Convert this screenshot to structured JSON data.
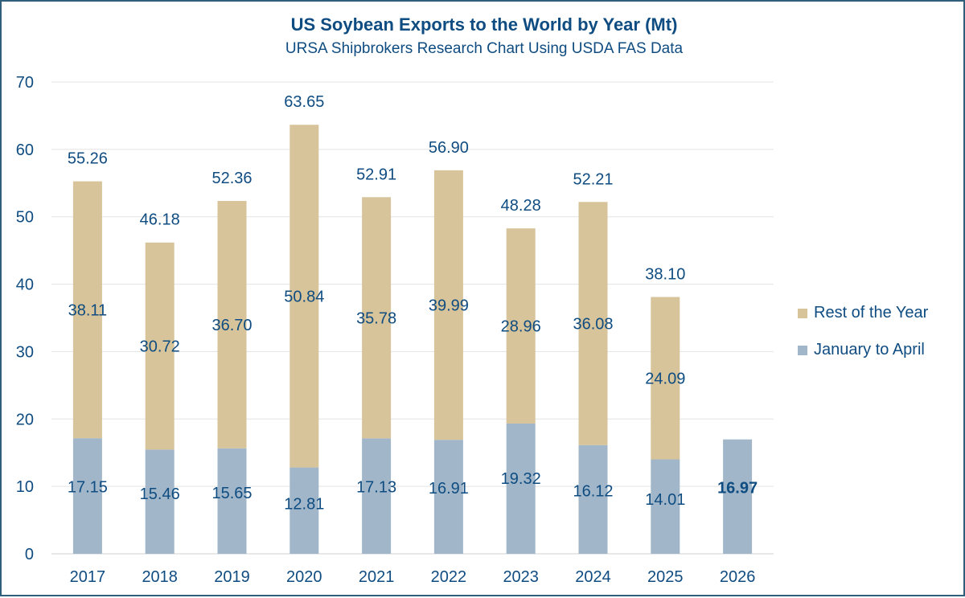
{
  "chart_data": {
    "type": "bar",
    "stacked": true,
    "title": "US Soybean Exports to the World by Year (Mt)",
    "subtitle": "URSA Shipbrokers Research Chart Using USDA FAS Data",
    "categories": [
      "2017",
      "2018",
      "2019",
      "2020",
      "2021",
      "2022",
      "2023",
      "2024",
      "2025",
      "2026"
    ],
    "series": [
      {
        "name": "January to April",
        "color": "#a1b7c9",
        "values": [
          17.15,
          15.46,
          15.65,
          12.81,
          17.13,
          16.91,
          19.32,
          16.12,
          14.01,
          16.97
        ],
        "labels": [
          "17.15",
          "15.46",
          "15.65",
          "12.81",
          "17.13",
          "16.91",
          "19.32",
          "16.12",
          "14.01",
          "16.97"
        ]
      },
      {
        "name": "Rest of the Year",
        "color": "#d7c49a",
        "values": [
          38.11,
          30.72,
          36.7,
          50.84,
          35.78,
          39.99,
          28.96,
          36.08,
          24.09,
          null
        ],
        "labels": [
          "38.11",
          "30.72",
          "36.70",
          "50.84",
          "35.78",
          "39.99",
          "28.96",
          "36.08",
          "24.09",
          null
        ]
      }
    ],
    "totals": [
      "55.26",
      "46.18",
      "52.36",
      "63.65",
      "52.91",
      "56.90",
      "48.28",
      "52.21",
      "38.10",
      null
    ],
    "highlight_label": "2026",
    "ylim": [
      0,
      70
    ],
    "yticks": [
      0,
      10,
      20,
      30,
      40,
      50,
      60,
      70
    ],
    "grid": true,
    "legend_position": "right",
    "xlabel": "",
    "ylabel": ""
  }
}
